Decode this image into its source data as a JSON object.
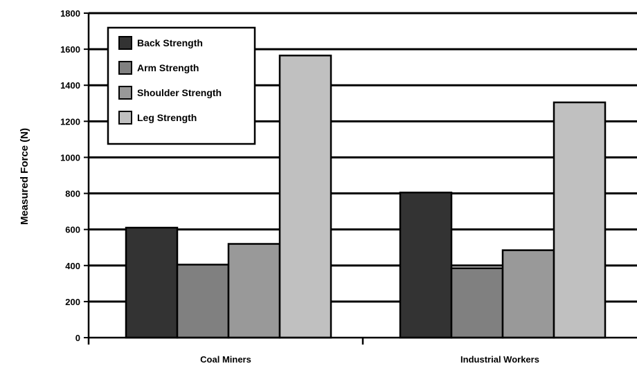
{
  "chart_data": {
    "type": "bar",
    "title": "",
    "xlabel": "",
    "ylabel": "Measured Force (N)",
    "ylim": [
      0,
      1800
    ],
    "yticks": [
      0,
      200,
      400,
      600,
      800,
      1000,
      1200,
      1400,
      1600,
      1800
    ],
    "grid": true,
    "legend_position": "top-left",
    "categories": [
      "Coal Miners",
      "Industrial Workers"
    ],
    "series": [
      {
        "name": "Back Strength",
        "values": [
          610,
          805
        ],
        "color": "#333333"
      },
      {
        "name": "Arm Strength",
        "values": [
          405,
          385
        ],
        "color": "#808080"
      },
      {
        "name": "Shoulder Strength",
        "values": [
          520,
          485
        ],
        "color": "#999999"
      },
      {
        "name": "Leg Strength",
        "values": [
          1565,
          1305
        ],
        "color": "#c0c0c0"
      }
    ]
  }
}
